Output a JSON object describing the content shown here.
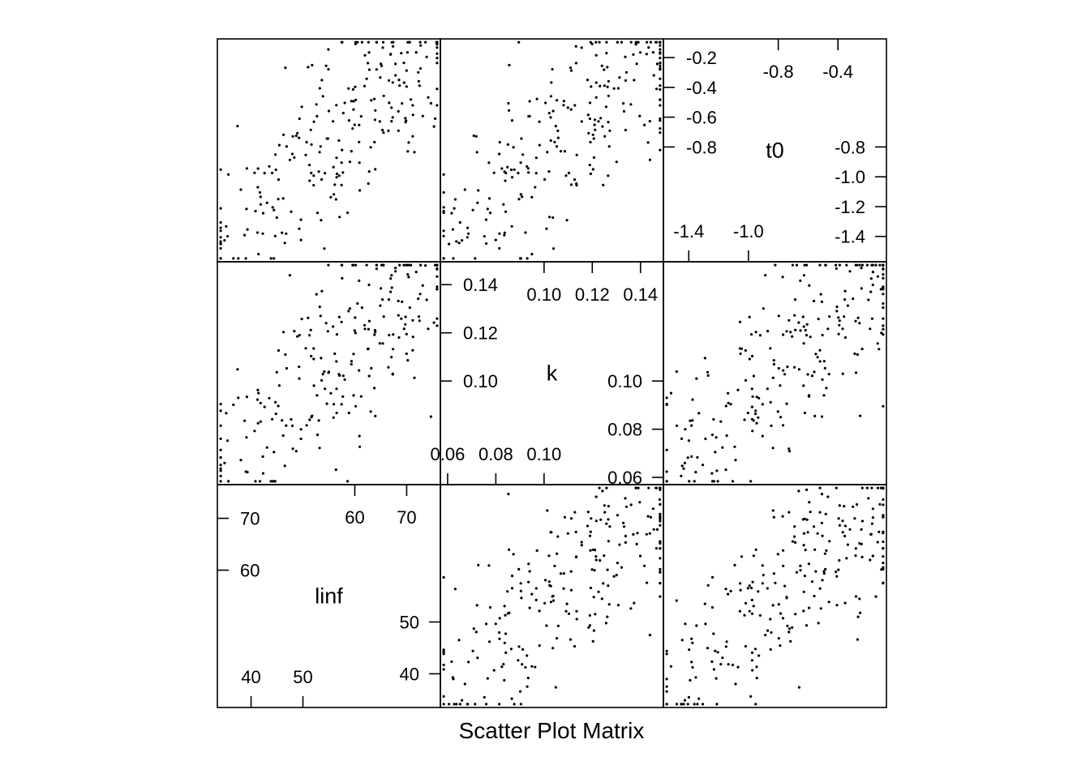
{
  "chart_data": {
    "type": "scatter",
    "xlabel": "Scatter Plot Matrix",
    "variables": [
      {
        "name": "linf",
        "range": [
          33.5,
          76.5
        ]
      },
      {
        "name": "k",
        "range": [
          0.057,
          0.1495
        ]
      },
      {
        "name": "t0",
        "range": [
          -1.57,
          -0.075
        ]
      }
    ],
    "diagonal_ticks": {
      "linf": {
        "left": [
          "60",
          "70"
        ],
        "bottom": [
          "40",
          "50"
        ],
        "top": [
          "60",
          "70"
        ],
        "right": [
          "40",
          "50"
        ]
      },
      "k": {
        "left": [
          "0.10",
          "0.12",
          "0.14"
        ],
        "bottom": [
          "0.06",
          "0.08",
          "0.10"
        ],
        "top": [
          "0.10",
          "0.12",
          "0.14"
        ],
        "right": [
          "0.06",
          "0.08",
          "0.10"
        ]
      },
      "t0": {
        "left": [
          "-0.8",
          "-0.6",
          "-0.4",
          "-0.2"
        ],
        "bottom": [
          "-1.4",
          "-1.0"
        ],
        "top": [
          "-0.8",
          "-0.4"
        ],
        "right": [
          "-1.4",
          "-1.2",
          "-1.0",
          "-0.8"
        ]
      }
    },
    "n_points": 240,
    "seed": 11,
    "grid": false,
    "legend": "none"
  }
}
